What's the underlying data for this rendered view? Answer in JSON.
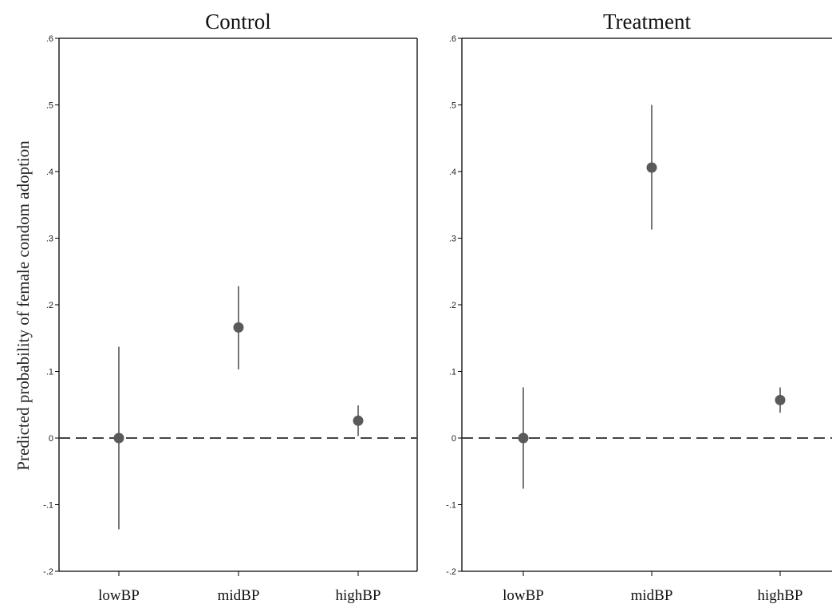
{
  "chart_data": {
    "type": "scatter",
    "ylabel": "Predicted probability of female condom adoption",
    "ylim": [
      -0.2,
      0.6
    ],
    "yticks": [
      {
        "value": -0.2,
        "label": "-.2"
      },
      {
        "value": -0.1,
        "label": "-.1"
      },
      {
        "value": 0,
        "label": "0"
      },
      {
        "value": 0.1,
        "label": ".1"
      },
      {
        "value": 0.2,
        "label": ".2"
      },
      {
        "value": 0.3,
        "label": ".3"
      },
      {
        "value": 0.4,
        "label": ".4"
      },
      {
        "value": 0.5,
        "label": ".5"
      },
      {
        "value": 0.6,
        "label": ".6"
      }
    ],
    "categories": [
      "lowBP",
      "midBP",
      "highBP"
    ],
    "reference_line": 0,
    "grid": false,
    "colors": {
      "marker": "#5a5a5a",
      "ci": "#777777",
      "refline": "#444444",
      "frame": "#000000"
    },
    "panels": [
      {
        "title": "Control",
        "points": [
          {
            "category": "lowBP",
            "estimate": 0.0,
            "ci_low": -0.137,
            "ci_high": 0.137
          },
          {
            "category": "midBP",
            "estimate": 0.166,
            "ci_low": 0.103,
            "ci_high": 0.228
          },
          {
            "category": "highBP",
            "estimate": 0.026,
            "ci_low": 0.003,
            "ci_high": 0.049
          }
        ]
      },
      {
        "title": "Treatment",
        "points": [
          {
            "category": "lowBP",
            "estimate": 0.0,
            "ci_low": -0.076,
            "ci_high": 0.076
          },
          {
            "category": "midBP",
            "estimate": 0.406,
            "ci_low": 0.313,
            "ci_high": 0.5
          },
          {
            "category": "highBP",
            "estimate": 0.057,
            "ci_low": 0.038,
            "ci_high": 0.076
          }
        ]
      }
    ]
  }
}
